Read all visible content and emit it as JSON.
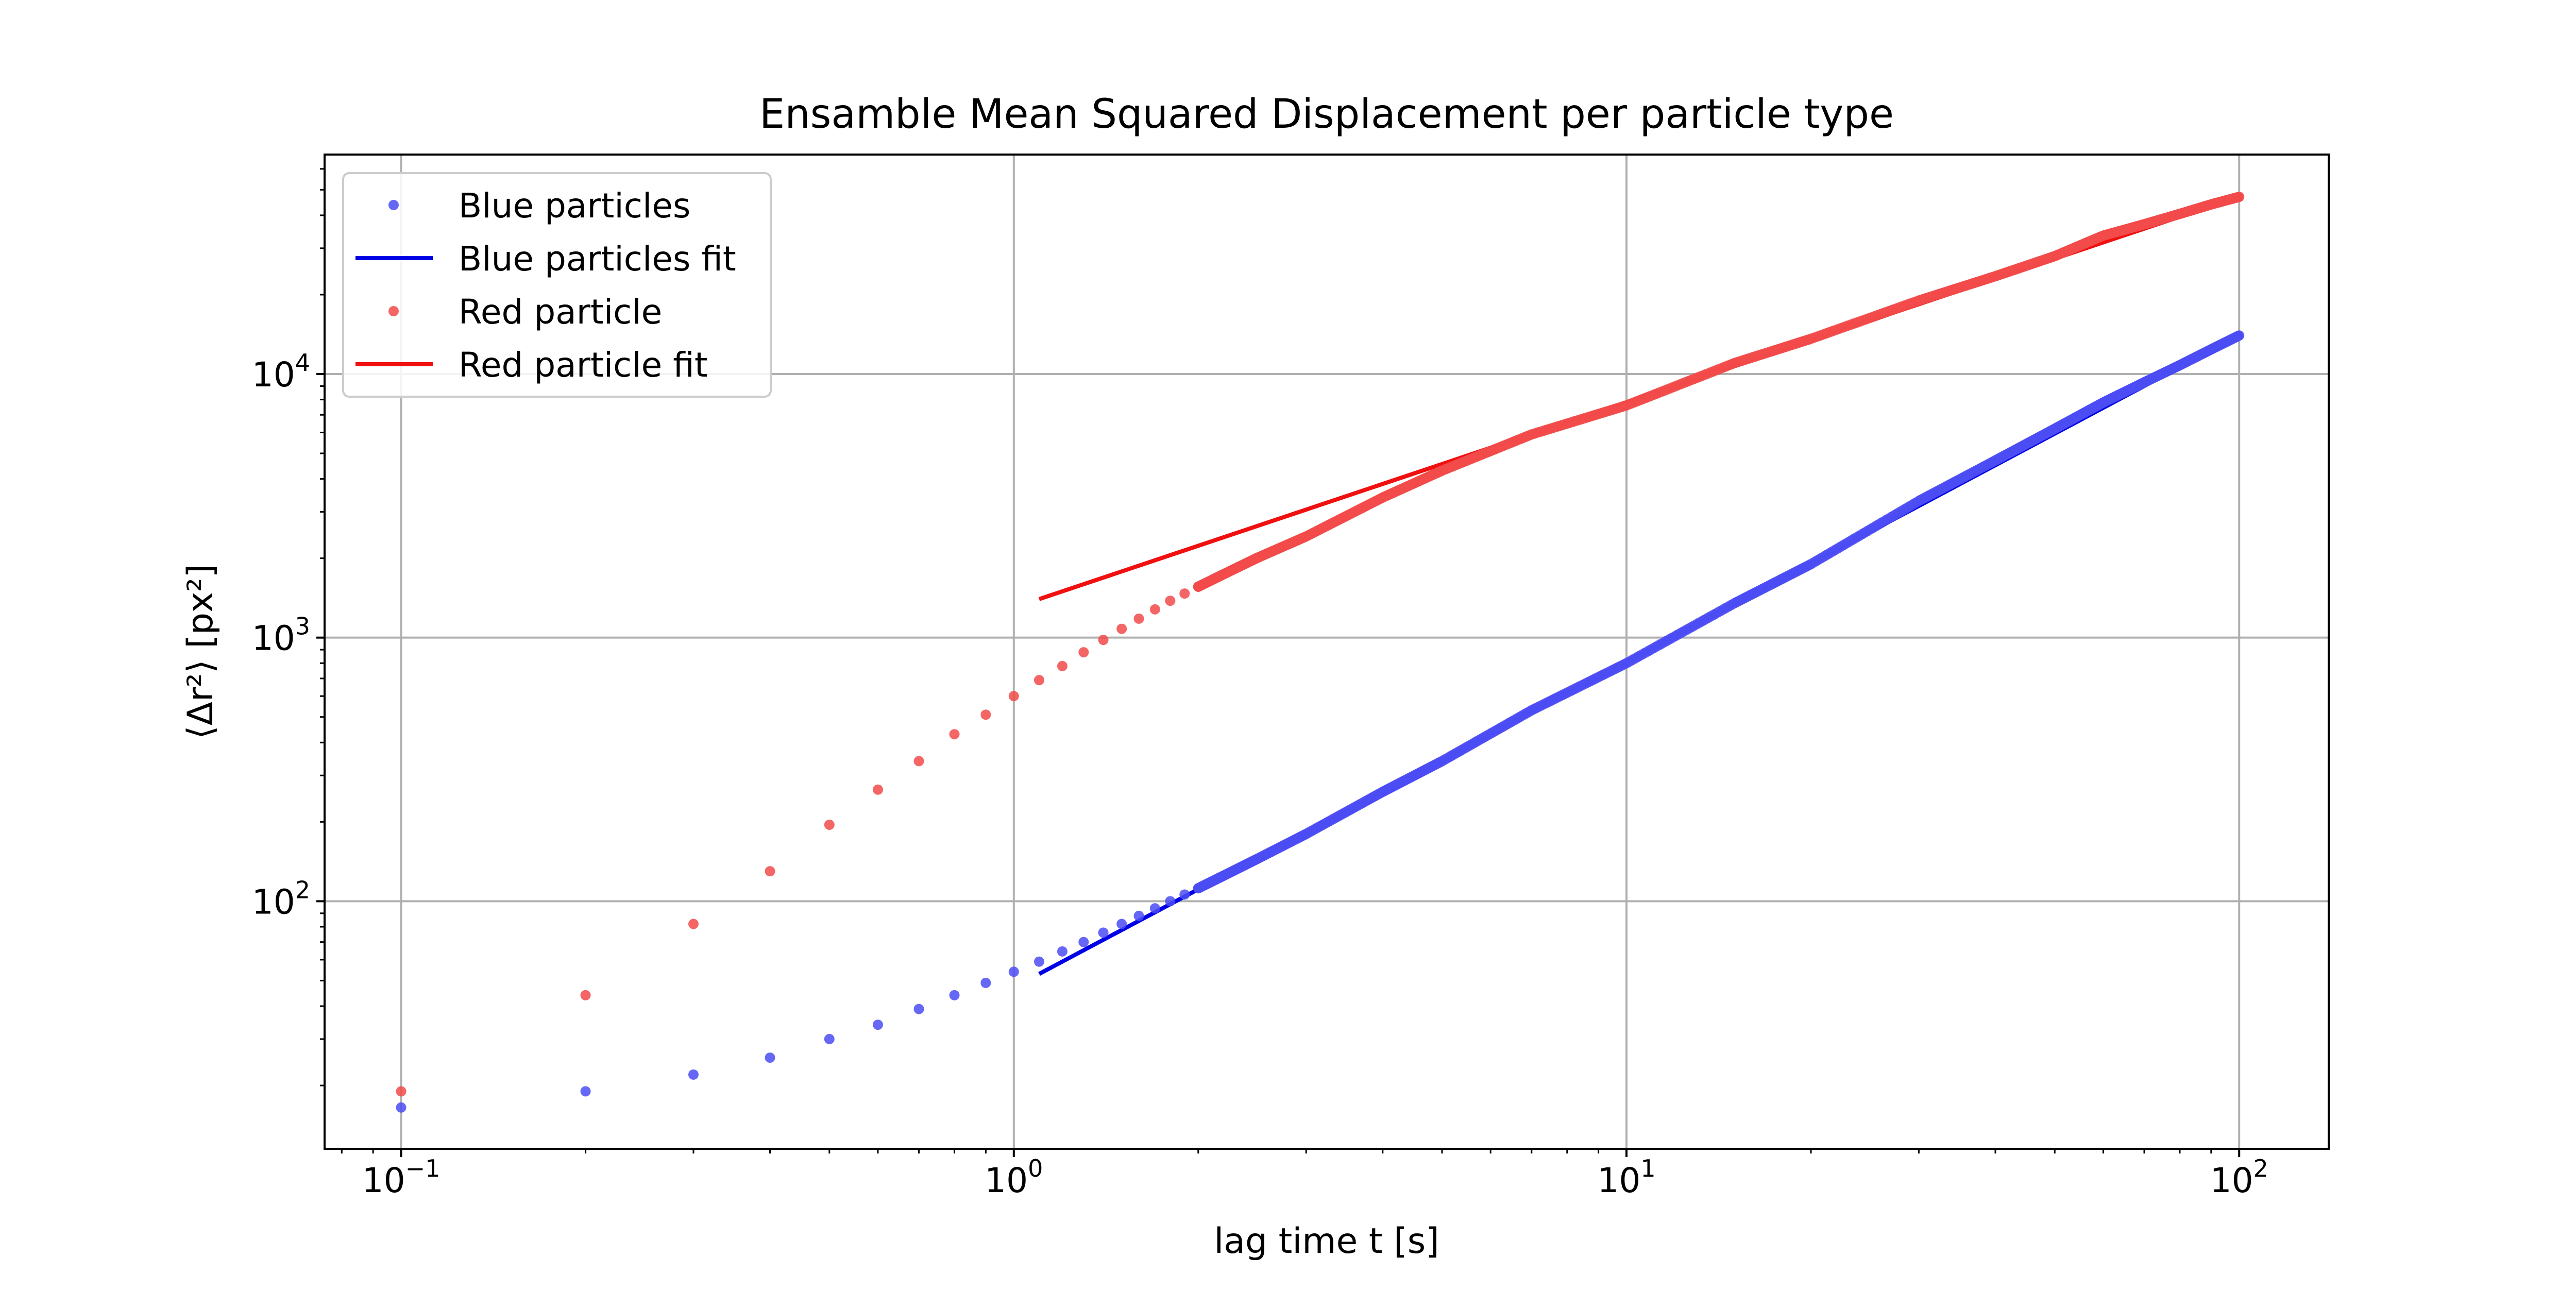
{
  "chart_data": {
    "type": "scatter",
    "title": "Ensamble Mean Squared Displacement per particle type",
    "xlabel": "lag time t [s]",
    "ylabel": "⟨Δr²⟩ [px²]",
    "xscale": "log",
    "yscale": "log",
    "xlim": [
      0.075,
      140
    ],
    "ylim": [
      11.5,
      68000
    ],
    "grid": true,
    "legend_position": "upper-left",
    "xticks": [
      {
        "value": 0.1,
        "label_base": "10",
        "label_exp": "−1"
      },
      {
        "value": 1,
        "label_base": "10",
        "label_exp": "0"
      },
      {
        "value": 10,
        "label_base": "10",
        "label_exp": "1"
      },
      {
        "value": 100,
        "label_base": "10",
        "label_exp": "2"
      }
    ],
    "yticks": [
      {
        "value": 100,
        "label_base": "10",
        "label_exp": "2"
      },
      {
        "value": 1000,
        "label_base": "10",
        "label_exp": "3"
      },
      {
        "value": 10000,
        "label_base": "10",
        "label_exp": "4"
      }
    ],
    "series": [
      {
        "name": "Blue particles",
        "kind": "points",
        "color": "#4c4cf5",
        "x": [
          0.1,
          0.2,
          0.3,
          0.4,
          0.5,
          0.6,
          0.7,
          0.8,
          0.9,
          1.0,
          1.1,
          1.2,
          1.3,
          1.4,
          1.5,
          1.6,
          1.7,
          1.8,
          1.9,
          2.0,
          2.2,
          2.5,
          3.0,
          4.0,
          5.0,
          7.0,
          10,
          15,
          20,
          30,
          40,
          50,
          60,
          70,
          80,
          90,
          100
        ],
        "y": [
          16.5,
          19,
          22,
          25.5,
          30,
          34,
          39,
          44,
          49,
          54,
          59,
          64.5,
          70,
          76,
          82,
          88,
          94,
          100,
          106,
          112,
          125,
          145,
          180,
          260,
          340,
          530,
          800,
          1350,
          1900,
          3300,
          4700,
          6200,
          7800,
          9300,
          10800,
          12400,
          14000
        ]
      },
      {
        "name": "Blue particles fit",
        "kind": "line",
        "color": "#0000e6",
        "x": [
          1.1,
          100
        ],
        "y": [
          53,
          14000
        ]
      },
      {
        "name": "Red particle",
        "kind": "points",
        "color": "#f24a4a",
        "x": [
          0.1,
          0.2,
          0.3,
          0.4,
          0.5,
          0.6,
          0.7,
          0.8,
          0.9,
          1.0,
          1.1,
          1.2,
          1.3,
          1.4,
          1.5,
          1.6,
          1.7,
          1.8,
          1.9,
          2.0,
          2.2,
          2.5,
          3.0,
          4.0,
          5.0,
          7.0,
          10,
          15,
          20,
          30,
          40,
          50,
          60,
          70,
          80,
          90,
          100
        ],
        "y": [
          19,
          44,
          82,
          130,
          195,
          265,
          340,
          430,
          510,
          600,
          690,
          780,
          880,
          980,
          1080,
          1180,
          1280,
          1380,
          1470,
          1560,
          1740,
          2010,
          2420,
          3400,
          4300,
          5900,
          7600,
          11000,
          13600,
          19000,
          23500,
          28000,
          33500,
          37000,
          40500,
          44000,
          47000
        ]
      },
      {
        "name": "Red particle fit",
        "kind": "line",
        "color": "#f01010",
        "x": [
          1.1,
          100
        ],
        "y": [
          1400,
          47000
        ]
      }
    ]
  }
}
